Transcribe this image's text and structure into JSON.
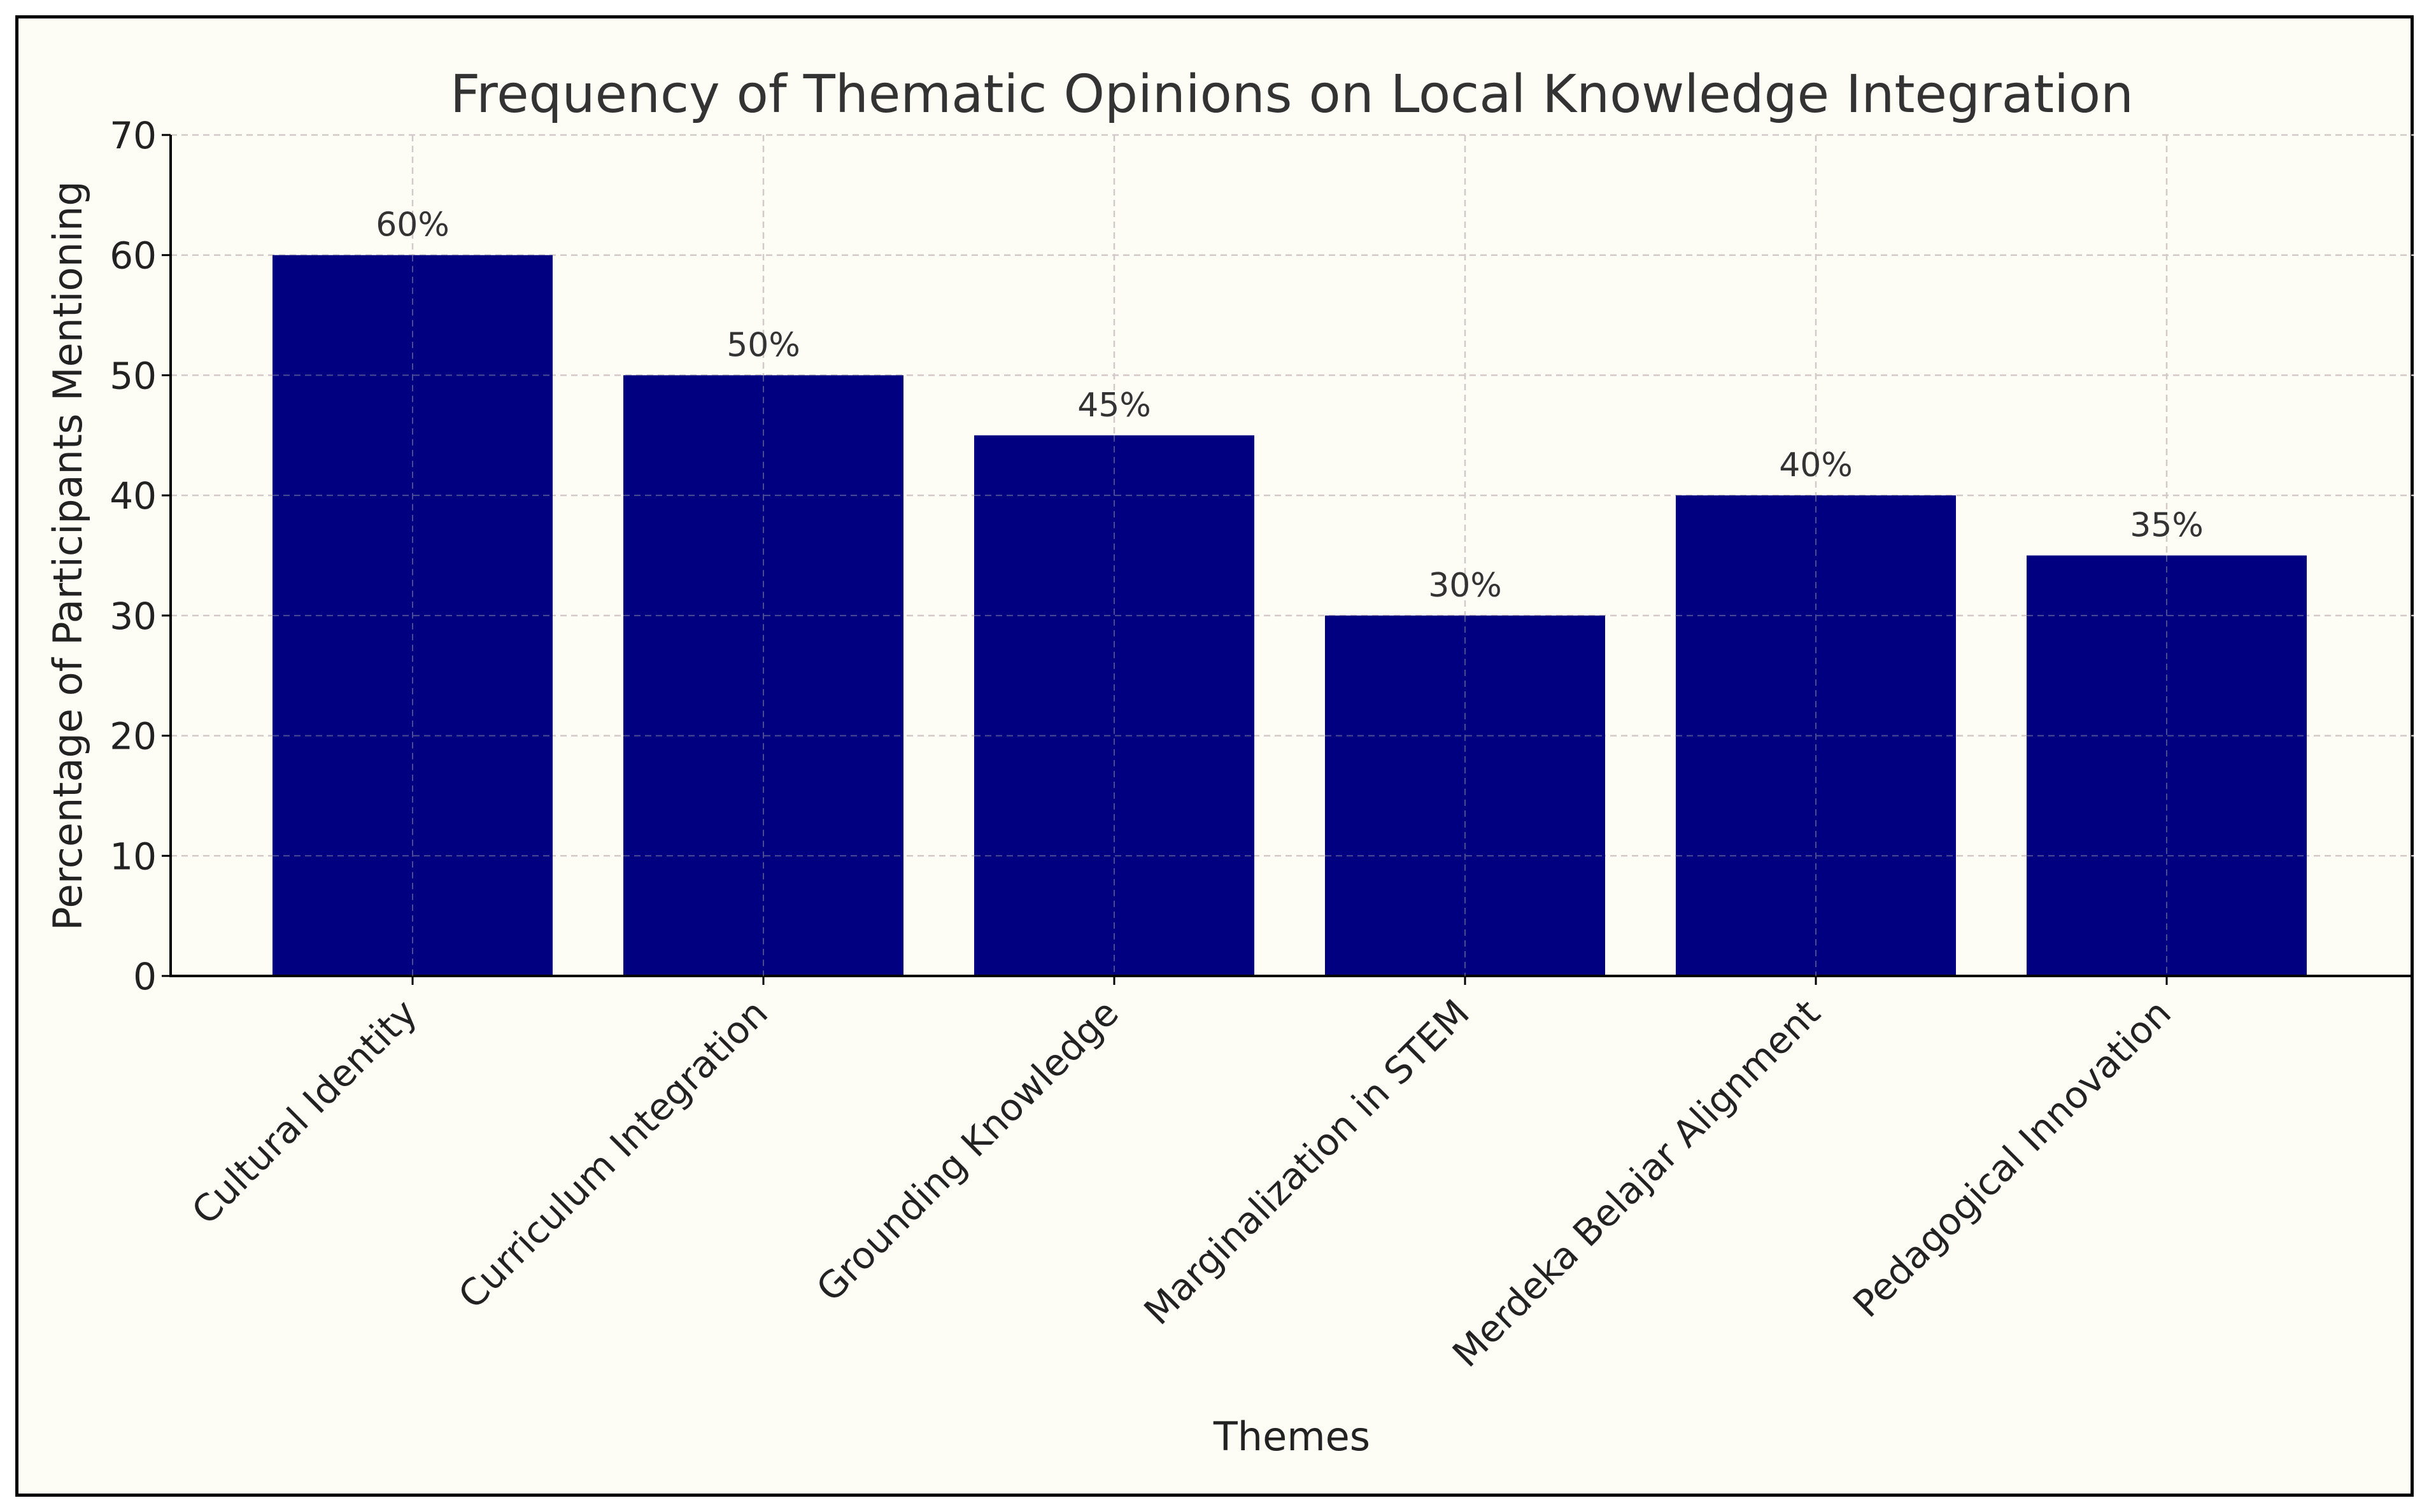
{
  "chart_data": {
    "type": "bar",
    "title": "Frequency of Thematic Opinions on Local Knowledge Integration",
    "xlabel": "Themes",
    "ylabel": "Percentage of Participants Mentioning",
    "categories": [
      "Cultural Identity",
      "Curriculum Integration",
      "Grounding Knowledge",
      "Marginalization in STEM",
      "Merdeka Belajar Alignment",
      "Pedagogical Innovation"
    ],
    "values": [
      60,
      50,
      45,
      30,
      40,
      35
    ],
    "data_labels": [
      "60%",
      "50%",
      "45%",
      "30%",
      "40%",
      "35%"
    ],
    "ylim": [
      0,
      70
    ],
    "yticks": [
      0,
      10,
      20,
      30,
      40,
      50,
      60,
      70
    ],
    "grid": true,
    "colors": {
      "bar": "#000080",
      "background": "#fdfcf5",
      "grid": "#d4c9c9",
      "axis": "#000000",
      "text": "#333333"
    }
  }
}
